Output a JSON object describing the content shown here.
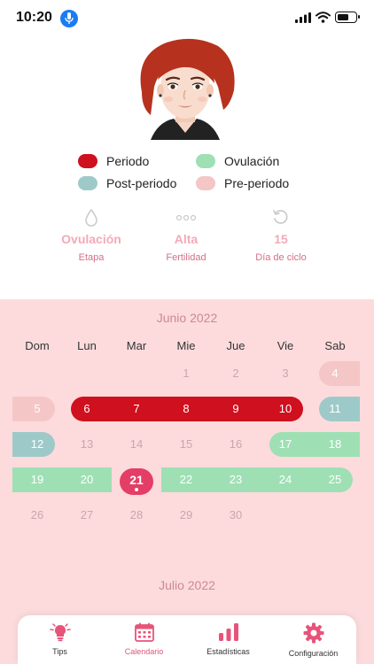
{
  "status_bar": {
    "time": "10:20"
  },
  "legend": [
    {
      "label": "Periodo",
      "color": "#cf101f"
    },
    {
      "label": "Ovulación",
      "color": "#9ee0b4"
    },
    {
      "label": "Post-periodo",
      "color": "#9ec9c9"
    },
    {
      "label": "Pre-periodo",
      "color": "#f5c6c6"
    }
  ],
  "stats": [
    {
      "value": "Ovulación",
      "label": "Etapa",
      "icon": "droplet-icon"
    },
    {
      "value": "Alta",
      "label": "Fertilidad",
      "icon": "dots-icon"
    },
    {
      "value": "15",
      "label": "Día de ciclo",
      "icon": "refresh-icon"
    }
  ],
  "calendar": {
    "month": "Junio 2022",
    "next_month": "Julio 2022",
    "weekdays": [
      "Dom",
      "Lun",
      "Mar",
      "Mie",
      "Jue",
      "Vie",
      "Sab"
    ],
    "weeks": [
      [
        "",
        "",
        "",
        "1",
        "2",
        "3",
        "4"
      ],
      [
        "5",
        "6",
        "7",
        "8",
        "9",
        "10",
        "11"
      ],
      [
        "12",
        "13",
        "14",
        "15",
        "16",
        "17",
        "18"
      ],
      [
        "19",
        "20",
        "21",
        "22",
        "23",
        "24",
        "25"
      ],
      [
        "26",
        "27",
        "28",
        "29",
        "30",
        "",
        ""
      ]
    ],
    "today": "21"
  },
  "tabs": [
    {
      "label": "Tips",
      "icon": "lightbulb-icon"
    },
    {
      "label": "Calendario",
      "icon": "calendar-icon"
    },
    {
      "label": "Estadísticas",
      "icon": "bar-chart-icon"
    },
    {
      "label": "Configuración",
      "icon": "gear-icon"
    }
  ]
}
